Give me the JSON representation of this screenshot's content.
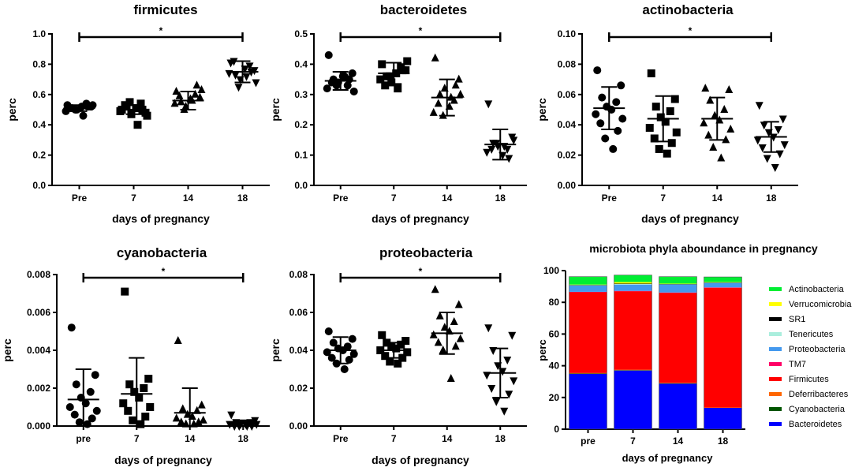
{
  "chart_data": [
    {
      "type": "scatter",
      "title": "firmicutes",
      "xlabel": "days of pregnancy",
      "ylabel": "perc",
      "categories": [
        "Pre",
        "7",
        "14",
        "18"
      ],
      "yticks": [
        "0.0",
        "0.2",
        "0.4",
        "0.6",
        "0.8",
        "1.0"
      ],
      "ylim": [
        0,
        1.0
      ],
      "markers": [
        "circle",
        "square",
        "triangle-up",
        "triangle-down"
      ],
      "groups": [
        [
          0.53,
          0.52,
          0.51,
          0.54,
          0.5,
          0.52,
          0.49,
          0.53,
          0.51,
          0.52,
          0.5,
          0.46
        ],
        [
          0.5,
          0.48,
          0.52,
          0.54,
          0.47,
          0.51,
          0.49,
          0.46,
          0.53,
          0.5,
          0.55,
          0.4
        ],
        [
          0.62,
          0.58,
          0.55,
          0.6,
          0.52,
          0.57,
          0.54,
          0.63,
          0.59,
          0.66,
          0.5,
          0.56
        ],
        [
          0.81,
          0.76,
          0.73,
          0.79,
          0.7,
          0.77,
          0.74,
          0.68,
          0.82,
          0.75,
          0.65,
          0.72
        ]
      ],
      "mean": [
        0.51,
        0.5,
        0.56,
        0.75
      ],
      "sd": [
        0.02,
        0.03,
        0.06,
        0.07
      ],
      "significance": {
        "from": "Pre",
        "to": "18",
        "label": "*"
      }
    },
    {
      "type": "scatter",
      "title": "bacteroidetes",
      "xlabel": "days of pregnancy",
      "ylabel": "perc",
      "categories": [
        "Pre",
        "7",
        "14",
        "18"
      ],
      "yticks": [
        "0.0",
        "0.1",
        "0.2",
        "0.3",
        "0.4",
        "0.5"
      ],
      "ylim": [
        0,
        0.5
      ],
      "markers": [
        "circle",
        "square",
        "triangle-up",
        "triangle-down"
      ],
      "groups": [
        [
          0.43,
          0.37,
          0.35,
          0.33,
          0.34,
          0.36,
          0.32,
          0.31,
          0.34,
          0.35,
          0.33,
          0.36
        ],
        [
          0.4,
          0.38,
          0.36,
          0.39,
          0.34,
          0.37,
          0.35,
          0.41,
          0.33,
          0.38,
          0.36,
          0.32
        ],
        [
          0.42,
          0.35,
          0.3,
          0.28,
          0.32,
          0.26,
          0.24,
          0.3,
          0.27,
          0.33,
          0.23,
          0.29
        ],
        [
          0.27,
          0.16,
          0.14,
          0.12,
          0.13,
          0.1,
          0.11,
          0.15,
          0.12,
          0.09,
          0.14,
          0.13
        ]
      ],
      "mean": [
        0.345,
        0.37,
        0.29,
        0.135
      ],
      "sd": [
        0.03,
        0.035,
        0.06,
        0.05
      ],
      "significance": {
        "from": "Pre",
        "to": "18",
        "label": "*"
      }
    },
    {
      "type": "scatter",
      "title": "actinobacteria",
      "xlabel": "days of pregnancy",
      "ylabel": "perc",
      "categories": [
        "Pre",
        "7",
        "14",
        "18"
      ],
      "yticks": [
        "0.00",
        "0.02",
        "0.04",
        "0.06",
        "0.08",
        "0.10"
      ],
      "ylim": [
        0,
        0.1
      ],
      "markers": [
        "circle",
        "square",
        "triangle-up",
        "triangle-down"
      ],
      "groups": [
        [
          0.076,
          0.066,
          0.058,
          0.055,
          0.052,
          0.05,
          0.047,
          0.044,
          0.041,
          0.036,
          0.031,
          0.024
        ],
        [
          0.074,
          0.057,
          0.052,
          0.049,
          0.045,
          0.042,
          0.038,
          0.035,
          0.031,
          0.028,
          0.024,
          0.021
        ],
        [
          0.064,
          0.063,
          0.056,
          0.05,
          0.046,
          0.043,
          0.041,
          0.037,
          0.033,
          0.03,
          0.025,
          0.018
        ],
        [
          0.053,
          0.044,
          0.04,
          0.037,
          0.035,
          0.032,
          0.03,
          0.027,
          0.025,
          0.021,
          0.018,
          0.012
        ]
      ],
      "mean": [
        0.051,
        0.044,
        0.044,
        0.032
      ],
      "sd": [
        0.014,
        0.015,
        0.014,
        0.01
      ],
      "significance": {
        "from": "Pre",
        "to": "18",
        "label": "*"
      }
    },
    {
      "type": "scatter",
      "title": "cyanobacteria",
      "xlabel": "days of pregnancy",
      "ylabel": "perc",
      "categories": [
        "pre",
        "7",
        "14",
        "18"
      ],
      "yticks": [
        "0.000",
        "0.002",
        "0.004",
        "0.006",
        "0.008"
      ],
      "ylim": [
        0,
        0.008
      ],
      "markers": [
        "circle",
        "square",
        "triangle-up",
        "triangle-down"
      ],
      "groups": [
        [
          0.0052,
          0.0027,
          0.0022,
          0.0018,
          0.0015,
          0.0012,
          0.001,
          0.0008,
          0.0006,
          0.0004,
          0.0002,
          0.0001
        ],
        [
          0.0071,
          0.0025,
          0.0022,
          0.002,
          0.0018,
          0.0015,
          0.0012,
          0.001,
          0.0008,
          0.0005,
          0.0003,
          0.0001
        ],
        [
          0.0045,
          0.0011,
          0.0009,
          0.0008,
          0.0006,
          0.0005,
          0.0004,
          0.0003,
          0.0002,
          0.0002,
          0.0001,
          0.0001
        ],
        [
          0.0006,
          0.0003,
          0.0002,
          0.0002,
          0.0001,
          0.0001,
          0.0001,
          0.0001,
          0.0,
          0.0,
          0.0,
          0.0
        ]
      ],
      "mean": [
        0.0014,
        0.0017,
        0.0007,
        0.0002
      ],
      "sd": [
        0.0016,
        0.0019,
        0.0013,
        0.0001
      ],
      "significance": {
        "from": "pre",
        "to": "18",
        "label": "*"
      }
    },
    {
      "type": "scatter",
      "title": "proteobacteria",
      "xlabel": "days of pregnancy",
      "ylabel": "perc",
      "categories": [
        "Pre",
        "7",
        "14",
        "18"
      ],
      "yticks": [
        "0.00",
        "0.02",
        "0.04",
        "0.06",
        "0.08"
      ],
      "ylim": [
        0,
        0.08
      ],
      "markers": [
        "circle",
        "square",
        "triangle-up",
        "triangle-down"
      ],
      "groups": [
        [
          0.05,
          0.046,
          0.044,
          0.042,
          0.041,
          0.04,
          0.039,
          0.038,
          0.036,
          0.035,
          0.033,
          0.03
        ],
        [
          0.048,
          0.045,
          0.044,
          0.043,
          0.042,
          0.041,
          0.04,
          0.039,
          0.037,
          0.036,
          0.034,
          0.033
        ],
        [
          0.072,
          0.064,
          0.058,
          0.055,
          0.052,
          0.05,
          0.048,
          0.046,
          0.044,
          0.042,
          0.04,
          0.025
        ],
        [
          0.052,
          0.048,
          0.04,
          0.035,
          0.032,
          0.029,
          0.027,
          0.024,
          0.02,
          0.017,
          0.013,
          0.008
        ]
      ],
      "mean": [
        0.04,
        0.04,
        0.049,
        0.028
      ],
      "sd": [
        0.007,
        0.004,
        0.011,
        0.013
      ],
      "significance": {
        "from": "Pre",
        "to": "18",
        "label": "*"
      }
    },
    {
      "type": "bar",
      "stacked": true,
      "title": "microbiota phyla aboundance in pregnancy",
      "xlabel": "days of pregnancy",
      "ylabel": "perc",
      "categories": [
        "pre",
        "7",
        "14",
        "18"
      ],
      "yticks": [
        "0",
        "20",
        "40",
        "60",
        "80",
        "100"
      ],
      "ylim": [
        0,
        100
      ],
      "legend_position": "right",
      "series": [
        {
          "name": "Bacteroidetes",
          "color": "#0000ff",
          "values": [
            35.0,
            37.0,
            28.8,
            13.5
          ]
        },
        {
          "name": "Cyanobacteria",
          "color": "#005500",
          "values": [
            0.1,
            0.2,
            0.1,
            0.0
          ]
        },
        {
          "name": "Deferribacteres",
          "color": "#ff6600",
          "values": [
            0.3,
            0.3,
            0.3,
            0.2
          ]
        },
        {
          "name": "Firmicutes",
          "color": "#ff0000",
          "values": [
            51.0,
            49.5,
            56.8,
            75.5
          ]
        },
        {
          "name": "TM7",
          "color": "#ff0066",
          "values": [
            0.2,
            0.2,
            0.2,
            0.2
          ]
        },
        {
          "name": "Proteobacteria",
          "color": "#4499ee",
          "values": [
            4.0,
            4.0,
            5.0,
            2.8
          ]
        },
        {
          "name": "Tenericutes",
          "color": "#aaeedd",
          "values": [
            0.3,
            0.5,
            0.3,
            0.3
          ]
        },
        {
          "name": "SR1",
          "color": "#000000",
          "values": [
            0.1,
            0.1,
            0.1,
            0.1
          ]
        },
        {
          "name": "Verrucomicrobia",
          "color": "#ffff00",
          "values": [
            0.2,
            1.0,
            0.2,
            0.2
          ]
        },
        {
          "name": "Actinobacteria",
          "color": "#00ee33",
          "values": [
            5.0,
            4.4,
            4.4,
            3.2
          ]
        }
      ],
      "legend_order": [
        "Actinobacteria",
        "Verrucomicrobia",
        "SR1",
        "Tenericutes",
        "Proteobacteria",
        "TM7",
        "Firmicutes",
        "Deferribacteres",
        "Cyanobacteria",
        "Bacteroidetes"
      ]
    }
  ]
}
